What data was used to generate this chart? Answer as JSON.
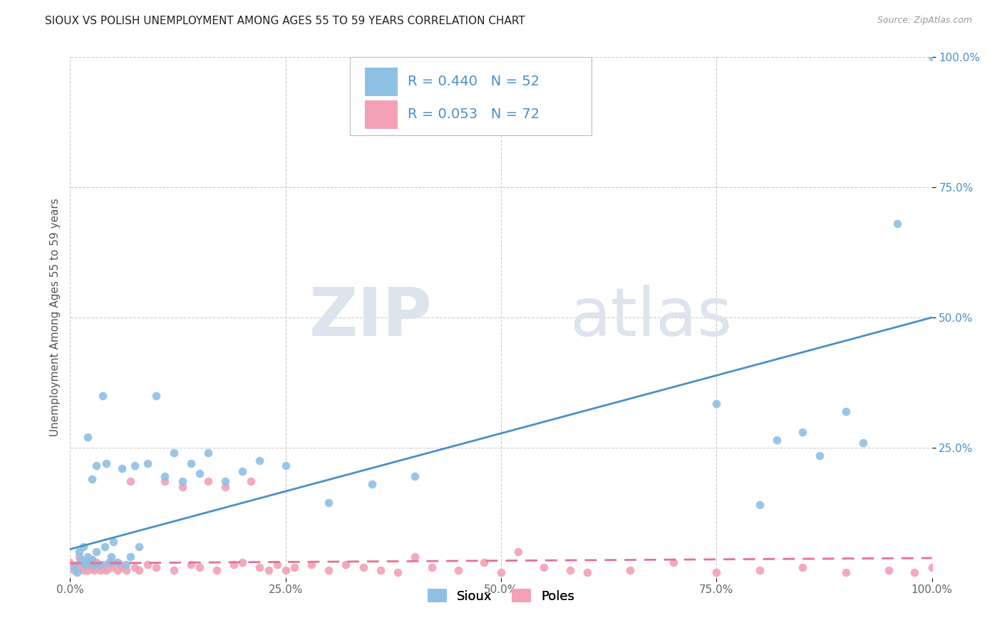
{
  "title": "SIOUX VS POLISH UNEMPLOYMENT AMONG AGES 55 TO 59 YEARS CORRELATION CHART",
  "source": "Source: ZipAtlas.com",
  "ylabel": "Unemployment Among Ages 55 to 59 years",
  "background_color": "#ffffff",
  "grid_color": "#cccccc",
  "watermark_zip": "ZIP",
  "watermark_atlas": "atlas",
  "sioux_color": "#8ec0e4",
  "poles_color": "#f4a0b5",
  "sioux_line_color": "#4a90c8",
  "poles_line_color": "#e87090",
  "legend_sioux_R": 0.44,
  "legend_sioux_N": 52,
  "legend_poles_R": 0.053,
  "legend_poles_N": 72,
  "xlim": [
    0.0,
    1.0
  ],
  "ylim": [
    0.0,
    1.0
  ],
  "xtick_labels": [
    "0.0%",
    "25.0%",
    "50.0%",
    "75.0%",
    "100.0%"
  ],
  "xtick_vals": [
    0.0,
    0.25,
    0.5,
    0.75,
    1.0
  ],
  "ytick_labels": [
    "25.0%",
    "50.0%",
    "75.0%",
    "100.0%"
  ],
  "ytick_vals": [
    0.25,
    0.5,
    0.75,
    1.0
  ],
  "sioux_line_x": [
    0.0,
    1.0
  ],
  "sioux_line_y": [
    0.055,
    0.5
  ],
  "poles_line_x": [
    0.0,
    1.0
  ],
  "poles_line_y": [
    0.028,
    0.038
  ],
  "sioux_x": [
    0.005,
    0.008,
    0.01,
    0.012,
    0.015,
    0.015,
    0.018,
    0.02,
    0.02,
    0.022,
    0.025,
    0.025,
    0.028,
    0.03,
    0.03,
    0.035,
    0.038,
    0.04,
    0.042,
    0.045,
    0.048,
    0.05,
    0.055,
    0.06,
    0.065,
    0.07,
    0.075,
    0.08,
    0.09,
    0.1,
    0.11,
    0.12,
    0.13,
    0.14,
    0.15,
    0.16,
    0.18,
    0.2,
    0.22,
    0.25,
    0.3,
    0.35,
    0.4,
    0.75,
    0.8,
    0.82,
    0.85,
    0.87,
    0.9,
    0.92,
    0.96,
    1.0
  ],
  "sioux_y": [
    0.02,
    0.01,
    0.05,
    0.035,
    0.03,
    0.06,
    0.025,
    0.04,
    0.27,
    0.03,
    0.035,
    0.19,
    0.025,
    0.05,
    0.215,
    0.025,
    0.35,
    0.06,
    0.22,
    0.03,
    0.04,
    0.07,
    0.03,
    0.21,
    0.025,
    0.04,
    0.215,
    0.06,
    0.22,
    0.35,
    0.195,
    0.24,
    0.185,
    0.22,
    0.2,
    0.24,
    0.185,
    0.205,
    0.225,
    0.215,
    0.145,
    0.18,
    0.195,
    0.335,
    0.14,
    0.265,
    0.28,
    0.235,
    0.32,
    0.26,
    0.68,
    1.0
  ],
  "poles_x": [
    0.0,
    0.005,
    0.008,
    0.01,
    0.012,
    0.015,
    0.015,
    0.018,
    0.02,
    0.022,
    0.025,
    0.025,
    0.028,
    0.03,
    0.03,
    0.032,
    0.035,
    0.038,
    0.04,
    0.042,
    0.045,
    0.048,
    0.05,
    0.055,
    0.058,
    0.06,
    0.065,
    0.07,
    0.075,
    0.08,
    0.09,
    0.1,
    0.11,
    0.12,
    0.13,
    0.14,
    0.15,
    0.16,
    0.17,
    0.18,
    0.19,
    0.2,
    0.21,
    0.22,
    0.23,
    0.24,
    0.25,
    0.26,
    0.28,
    0.3,
    0.32,
    0.34,
    0.36,
    0.38,
    0.4,
    0.42,
    0.45,
    0.48,
    0.5,
    0.52,
    0.55,
    0.58,
    0.6,
    0.65,
    0.7,
    0.75,
    0.8,
    0.85,
    0.9,
    0.95,
    0.98,
    1.0
  ],
  "poles_y": [
    0.03,
    0.015,
    0.025,
    0.04,
    0.02,
    0.015,
    0.03,
    0.02,
    0.015,
    0.025,
    0.02,
    0.035,
    0.015,
    0.025,
    0.03,
    0.02,
    0.015,
    0.025,
    0.02,
    0.015,
    0.025,
    0.02,
    0.03,
    0.015,
    0.025,
    0.02,
    0.015,
    0.185,
    0.02,
    0.015,
    0.025,
    0.02,
    0.185,
    0.015,
    0.175,
    0.025,
    0.02,
    0.185,
    0.015,
    0.175,
    0.025,
    0.03,
    0.185,
    0.02,
    0.015,
    0.025,
    0.015,
    0.02,
    0.025,
    0.015,
    0.025,
    0.02,
    0.015,
    0.01,
    0.04,
    0.02,
    0.015,
    0.03,
    0.01,
    0.05,
    0.02,
    0.015,
    0.01,
    0.015,
    0.03,
    0.01,
    0.015,
    0.02,
    0.01,
    0.015,
    0.01,
    0.02
  ]
}
